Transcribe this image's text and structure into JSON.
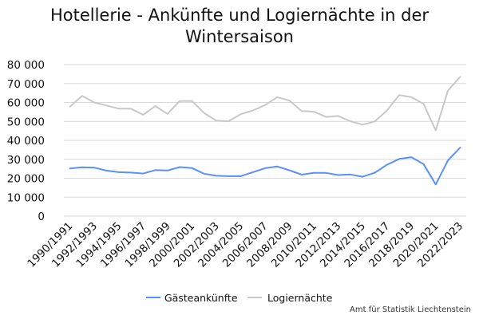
{
  "chart_data": {
    "type": "line",
    "title": "Hotellerie - Ankünfte und Logiernächte in der Wintersaison",
    "source": "Amt für Statistik Liechtenstein",
    "x": [
      "1990/1991",
      "1991/1992",
      "1992/1993",
      "1993/1994",
      "1994/1995",
      "1995/1996",
      "1996/1997",
      "1997/1998",
      "1998/1999",
      "1999/2000",
      "2000/2001",
      "2001/2002",
      "2002/2003",
      "2003/2004",
      "2004/2005",
      "2005/2006",
      "2006/2007",
      "2007/2008",
      "2008/2009",
      "2009/2010",
      "2010/2011",
      "2011/2012",
      "2012/2013",
      "2013/2014",
      "2014/2015",
      "2015/2016",
      "2016/2017",
      "2017/2018",
      "2018/2019",
      "2019/2020",
      "2020/2021",
      "2021/2022",
      "2022/2023"
    ],
    "x_tick_labels": [
      "1990/1991",
      "1992/1993",
      "1994/1995",
      "1996/1997",
      "1998/1999",
      "2000/2001",
      "2002/2003",
      "2004/2005",
      "2006/2007",
      "2008/2009",
      "2010/2011",
      "2012/2013",
      "2014/2015",
      "2016/2017",
      "2018/2019",
      "2020/2021",
      "2022/2023"
    ],
    "y_ticks": [
      0,
      10000,
      20000,
      30000,
      40000,
      50000,
      60000,
      70000,
      80000
    ],
    "y_tick_labels": [
      "0",
      "10 000",
      "20 000",
      "30 000",
      "40 000",
      "50 000",
      "60 000",
      "70 000",
      "80 000"
    ],
    "ylim": [
      0,
      80000
    ],
    "grid": true,
    "legend_position": "bottom",
    "series": [
      {
        "name": "Gästeankünfte",
        "color": "#5b8ff9",
        "values": [
          25200,
          25800,
          25600,
          24000,
          23200,
          23000,
          22500,
          24300,
          24100,
          25900,
          25400,
          22400,
          21300,
          21100,
          21100,
          23200,
          25300,
          26200,
          24200,
          21900,
          22800,
          22800,
          21700,
          22000,
          20800,
          22900,
          27100,
          30200,
          31100,
          27500,
          16700,
          29400,
          36200
        ]
      },
      {
        "name": "Logiernächte",
        "color": "#c8c8c8",
        "values": [
          57800,
          63500,
          60000,
          58400,
          56700,
          56700,
          53500,
          58100,
          54000,
          60800,
          60800,
          54500,
          50400,
          50100,
          53800,
          55800,
          58600,
          62800,
          61000,
          55500,
          55100,
          52400,
          52900,
          50100,
          48300,
          50000,
          55800,
          63900,
          62800,
          59300,
          45300,
          66300,
          73500
        ]
      }
    ]
  }
}
